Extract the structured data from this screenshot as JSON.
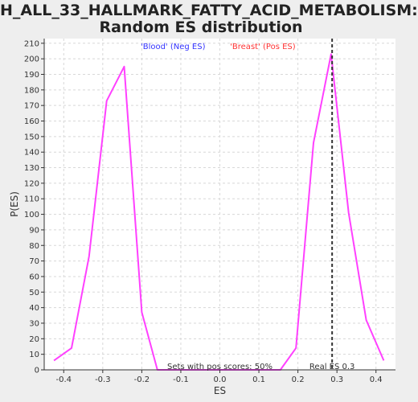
{
  "title_line1": "H_ALL_33_HALLMARK_FATTY_ACID_METABOLISM:",
  "title_line2": "Random ES distribution",
  "chart_data": {
    "type": "line",
    "xlabel": "ES",
    "ylabel": "P(ES)",
    "xlim": [
      -0.45,
      0.45
    ],
    "ylim": [
      0,
      213
    ],
    "x_ticks": [
      -0.4,
      -0.3,
      -0.2,
      -0.1,
      0.0,
      0.1,
      0.2,
      0.3,
      0.4
    ],
    "x_tick_labels": [
      "-0.4",
      "-0.3",
      "-0.2",
      "-0.1",
      "0.0",
      "0.1",
      "0.2",
      "0.3",
      "0.4"
    ],
    "y_ticks": [
      0,
      10,
      20,
      30,
      40,
      50,
      60,
      70,
      80,
      90,
      100,
      110,
      120,
      130,
      140,
      150,
      160,
      170,
      180,
      190,
      200,
      210
    ],
    "grid": true,
    "series_color": "#ff40ff",
    "x": [
      -0.425,
      -0.38,
      -0.335,
      -0.29,
      -0.245,
      -0.2,
      -0.16,
      -0.115,
      -0.07,
      -0.025,
      0.02,
      0.065,
      0.11,
      0.155,
      0.195,
      0.24,
      0.285,
      0.33,
      0.375,
      0.42
    ],
    "y": [
      6,
      14,
      73,
      173,
      195,
      37,
      0,
      0,
      0,
      0,
      0,
      0,
      0,
      0,
      14,
      146,
      203,
      101,
      32,
      6
    ],
    "annotations": {
      "neg_label": "'Blood' (Neg ES)",
      "neg_color": "#3333ff",
      "pos_label": "'Breast' (Pos ES)",
      "pos_color": "#ff3333",
      "sets_text": "Sets with pos scores: 50%",
      "real_es_label": "Real ES 0.3",
      "real_es_value": 0.3
    }
  }
}
